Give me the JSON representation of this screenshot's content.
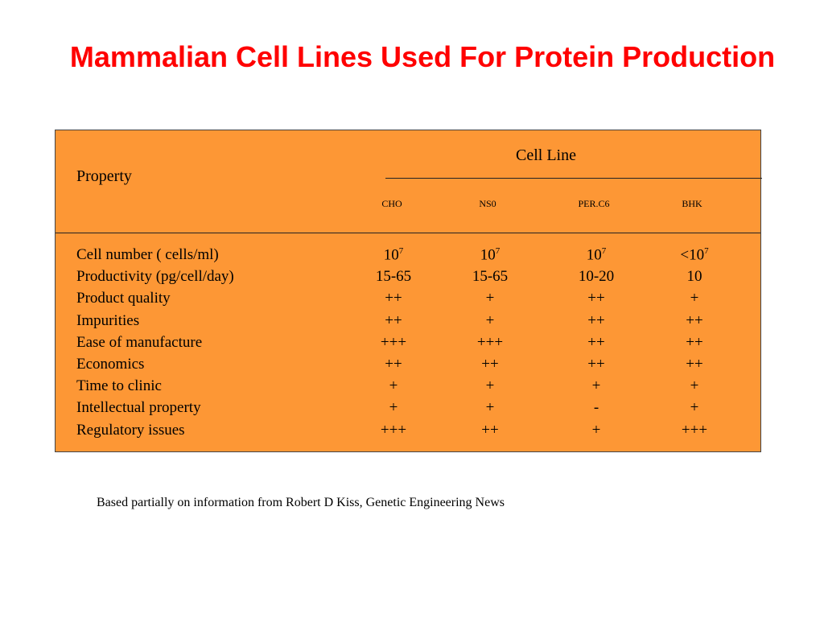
{
  "title": "Mammalian Cell Lines Used For Protein Production",
  "table": {
    "property_header": "Property",
    "group_header": "Cell Line",
    "columns": [
      "CHO",
      "NS0",
      "PER.C6",
      "BHK"
    ],
    "rows": [
      {
        "name": "Cell number ( cells/ml)",
        "values": [
          {
            "text": "10",
            "sup": "7"
          },
          {
            "text": "10",
            "sup": "7"
          },
          {
            "text": "10",
            "sup": "7"
          },
          {
            "text": "<10",
            "sup": "7"
          }
        ]
      },
      {
        "name": "Productivity     (pg/cell/day)",
        "values": [
          {
            "text": "15-65"
          },
          {
            "text": "15-65"
          },
          {
            "text": "10-20"
          },
          {
            "text": "10"
          }
        ]
      },
      {
        "name": "Product quality",
        "values": [
          {
            "text": "++"
          },
          {
            "text": "+"
          },
          {
            "text": "++"
          },
          {
            "text": "+"
          }
        ]
      },
      {
        "name": "Impurities",
        "values": [
          {
            "text": "++"
          },
          {
            "text": "+"
          },
          {
            "text": "++"
          },
          {
            "text": "++"
          }
        ]
      },
      {
        "name": "Ease of manufacture",
        "values": [
          {
            "text": "+++"
          },
          {
            "text": "+++"
          },
          {
            "text": "++"
          },
          {
            "text": "++"
          }
        ]
      },
      {
        "name": "Economics",
        "values": [
          {
            "text": "++"
          },
          {
            "text": "++"
          },
          {
            "text": "++"
          },
          {
            "text": "++"
          }
        ]
      },
      {
        "name": "Time to clinic",
        "values": [
          {
            "text": "+"
          },
          {
            "text": "+"
          },
          {
            "text": "+"
          },
          {
            "text": "+"
          }
        ]
      },
      {
        "name": "Intellectual property",
        "values": [
          {
            "text": "+"
          },
          {
            "text": "+"
          },
          {
            "text": "-"
          },
          {
            "text": "+"
          }
        ]
      },
      {
        "name": "Regulatory issues",
        "values": [
          {
            "text": "+++"
          },
          {
            "text": "++"
          },
          {
            "text": "+"
          },
          {
            "text": "+++"
          }
        ]
      }
    ]
  },
  "footnote": "Based partially on information from Robert D Kiss, Genetic Engineering News",
  "colors": {
    "title": "#ff0000",
    "table_background": "#fd9735"
  }
}
